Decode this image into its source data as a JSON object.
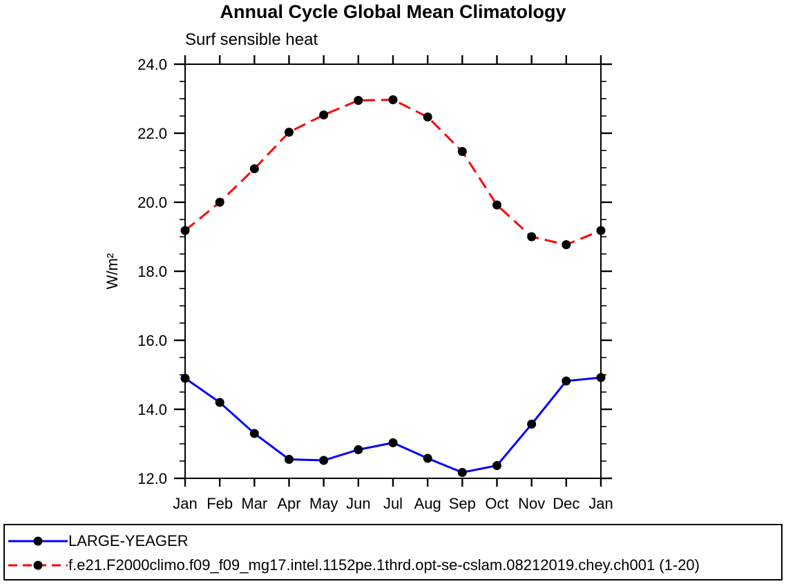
{
  "page": {
    "background_color": "#ffffff",
    "axis_color": "#000000"
  },
  "chart": {
    "title": "Annual Cycle Global Mean Climatology",
    "subtitle": "Surf sensible heat",
    "ylabel": "W/m²"
  },
  "chart_data": {
    "type": "line",
    "title": "Annual Cycle Global Mean Climatology",
    "subtitle": "Surf sensible heat",
    "xlabel": "",
    "ylabel": "W/m²",
    "categories": [
      "Jan",
      "Feb",
      "Mar",
      "Apr",
      "May",
      "Jun",
      "Jul",
      "Aug",
      "Sep",
      "Oct",
      "Nov",
      "Dec",
      "Jan"
    ],
    "ylim": [
      12.0,
      24.0
    ],
    "y_major_step": 2.0,
    "y_minor_step": 0.5,
    "ytick_labels": [
      "12.0",
      "14.0",
      "16.0",
      "18.0",
      "20.0",
      "22.0",
      "24.0"
    ],
    "grid": false,
    "legend_position": "bottom",
    "marker": "filled-circle",
    "marker_color": "#000000",
    "series": [
      {
        "name": "LARGE-YEAGER",
        "color": "#0000ff",
        "line_style": "solid",
        "values": [
          14.9,
          14.2,
          13.3,
          12.55,
          12.52,
          12.83,
          13.03,
          12.58,
          12.17,
          12.37,
          13.57,
          14.82,
          14.92
        ]
      },
      {
        "name": "f.e21.F2000climo.f09_f09_mg17.intel.1152pe.1thrd.opt-se-cslam.08212019.chey.ch001 (1-20)",
        "color": "#ff0000",
        "line_style": "dashed",
        "values": [
          19.18,
          20.0,
          20.97,
          22.03,
          22.53,
          22.95,
          22.97,
          22.47,
          21.47,
          19.92,
          19.0,
          18.77,
          19.18
        ]
      }
    ]
  }
}
